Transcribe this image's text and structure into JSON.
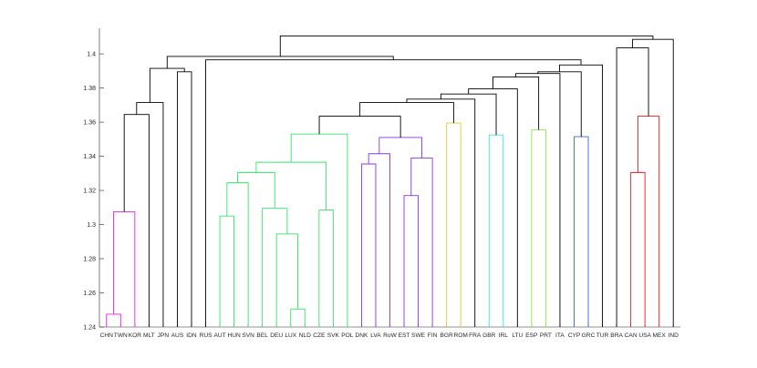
{
  "chart_data": {
    "type": "dendrogram",
    "title": "",
    "xlabel": "",
    "ylabel": "",
    "ylim": [
      1.24,
      1.415
    ],
    "yticks": [
      1.24,
      1.26,
      1.28,
      1.3,
      1.32,
      1.34,
      1.36,
      1.38,
      1.4
    ],
    "ytick_labels": [
      "1.24",
      "1.26",
      "1.28",
      "1.3",
      "1.32",
      "1.34",
      "1.36",
      "1.38",
      "1.4"
    ],
    "grid": false,
    "leaves": [
      "CHN",
      "TWN",
      "KOR",
      "MLT",
      "JPN",
      "AUS",
      "IDN",
      "RUS",
      "AUT",
      "HUN",
      "SVN",
      "BEL",
      "DEU",
      "LUX",
      "NLD",
      "CZE",
      "SVK",
      "POL",
      "DNK",
      "LVA",
      "RoW",
      "EST",
      "SWE",
      "FIN",
      "BGR",
      "ROM",
      "FRA",
      "GBR",
      "IRL",
      "LTU",
      "ESP",
      "PRT",
      "ITA",
      "CYP",
      "GRC",
      "TUR",
      "BRA",
      "CAN",
      "USA",
      "MEX",
      "IND"
    ],
    "merges": [
      {
        "id": "m1",
        "a": "CHN",
        "b": "TWN",
        "height": 1.2475,
        "color": "#e61ee6"
      },
      {
        "id": "m2",
        "a": "m1",
        "b": "KOR",
        "height": 1.3075,
        "color": "#e61ee6"
      },
      {
        "id": "m3",
        "a": "m2",
        "b": "MLT",
        "height": 1.3645,
        "color": "#000000"
      },
      {
        "id": "m4",
        "a": "m3",
        "b": "JPN",
        "height": 1.3715,
        "color": "#000000"
      },
      {
        "id": "m5",
        "a": "AUS",
        "b": "IDN",
        "height": 1.3895,
        "color": "#000000"
      },
      {
        "id": "m6",
        "a": "m4",
        "b": "m5",
        "height": 1.3915,
        "color": "#000000"
      },
      {
        "id": "m7",
        "a": "AUT",
        "b": "HUN",
        "height": 1.305,
        "color": "#33e666"
      },
      {
        "id": "m8",
        "a": "m7",
        "b": "SVN",
        "height": 1.3245,
        "color": "#33e666"
      },
      {
        "id": "m9",
        "a": "LUX",
        "b": "NLD",
        "height": 1.2505,
        "color": "#33e666"
      },
      {
        "id": "m10",
        "a": "DEU",
        "b": "m9",
        "height": 1.2945,
        "color": "#33e666"
      },
      {
        "id": "m11",
        "a": "BEL",
        "b": "m10",
        "height": 1.3095,
        "color": "#33e666"
      },
      {
        "id": "m12",
        "a": "m8",
        "b": "m11",
        "height": 1.3305,
        "color": "#33e666"
      },
      {
        "id": "m13",
        "a": "CZE",
        "b": "SVK",
        "height": 1.3085,
        "color": "#33e666"
      },
      {
        "id": "m14",
        "a": "m12",
        "b": "m13",
        "height": 1.3365,
        "color": "#33e666"
      },
      {
        "id": "m15",
        "a": "m14",
        "b": "POL",
        "height": 1.353,
        "color": "#33e666"
      },
      {
        "id": "m16",
        "a": "DNK",
        "b": "LVA",
        "height": 1.3355,
        "color": "#8c33e6"
      },
      {
        "id": "m17",
        "a": "m16",
        "b": "RoW",
        "height": 1.3415,
        "color": "#8c33e6"
      },
      {
        "id": "m18",
        "a": "EST",
        "b": "SWE",
        "height": 1.317,
        "color": "#8c33e6"
      },
      {
        "id": "m19",
        "a": "m18",
        "b": "FIN",
        "height": 1.339,
        "color": "#8c33e6"
      },
      {
        "id": "m20",
        "a": "m17",
        "b": "m19",
        "height": 1.351,
        "color": "#8c33e6"
      },
      {
        "id": "m21",
        "a": "m15",
        "b": "m20",
        "height": 1.3635,
        "color": "#000000"
      },
      {
        "id": "m22",
        "a": "BGR",
        "b": "ROM",
        "height": 1.3595,
        "color": "#e6c733"
      },
      {
        "id": "m23",
        "a": "m21",
        "b": "m22",
        "height": 1.3715,
        "color": "#000000"
      },
      {
        "id": "m24",
        "a": "m23",
        "b": "FRA",
        "height": 1.3735,
        "color": "#000000"
      },
      {
        "id": "m25",
        "a": "GBR",
        "b": "IRL",
        "height": 1.3525,
        "color": "#33e6e6"
      },
      {
        "id": "m26",
        "a": "m24",
        "b": "m25",
        "height": 1.3765,
        "color": "#000000"
      },
      {
        "id": "m27",
        "a": "m26",
        "b": "LTU",
        "height": 1.3795,
        "color": "#000000"
      },
      {
        "id": "m28",
        "a": "ESP",
        "b": "PRT",
        "height": 1.3555,
        "color": "#8ce64d"
      },
      {
        "id": "m29",
        "a": "m27",
        "b": "m28",
        "height": 1.3865,
        "color": "#000000"
      },
      {
        "id": "m30",
        "a": "m29",
        "b": "ITA",
        "height": 1.3885,
        "color": "#000000"
      },
      {
        "id": "m31",
        "a": "CYP",
        "b": "GRC",
        "height": 1.3515,
        "color": "#3366e6"
      },
      {
        "id": "m32",
        "a": "m30",
        "b": "m31",
        "height": 1.3895,
        "color": "#000000"
      },
      {
        "id": "m33",
        "a": "m32",
        "b": "TUR",
        "height": 1.3935,
        "color": "#000000"
      },
      {
        "id": "m34",
        "a": "m33",
        "b": "RUS",
        "height": 1.3965,
        "color": "#000000"
      },
      {
        "id": "m35",
        "a": "m6",
        "b": "m34",
        "height": 1.3985,
        "color": "#000000"
      },
      {
        "id": "m36",
        "a": "CAN",
        "b": "USA",
        "height": 1.3305,
        "color": "#e61a1a"
      },
      {
        "id": "m37",
        "a": "m36",
        "b": "MEX",
        "height": 1.3635,
        "color": "#e61a1a"
      },
      {
        "id": "m38",
        "a": "BRA",
        "b": "m37",
        "height": 1.4035,
        "color": "#000000"
      },
      {
        "id": "m39",
        "a": "m38",
        "b": "IND",
        "height": 1.4085,
        "color": "#000000"
      },
      {
        "id": "m40",
        "a": "m35",
        "b": "m39",
        "height": 1.4105,
        "color": "#000000"
      }
    ]
  }
}
